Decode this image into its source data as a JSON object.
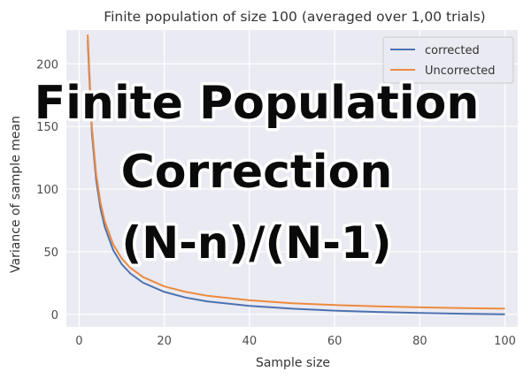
{
  "chart_data": {
    "type": "line",
    "title": "Finite population of size 100 (averaged over 1,00 trials)",
    "xlabel": "Sample size",
    "ylabel": "Variance of sample mean",
    "xlim": [
      -3,
      103
    ],
    "ylim": [
      -10,
      227
    ],
    "x_ticks": [
      0,
      20,
      40,
      60,
      80,
      100
    ],
    "y_ticks": [
      0,
      50,
      100,
      150,
      200
    ],
    "grid": true,
    "legend_position": "top-right",
    "x": [
      2,
      3,
      4,
      5,
      6,
      8,
      10,
      12,
      15,
      20,
      25,
      30,
      40,
      50,
      60,
      70,
      80,
      90,
      100
    ],
    "series": [
      {
        "name": "corrected",
        "color": "#4c72b0",
        "values": [
          218.9,
          144.3,
          107.1,
          84.8,
          69.9,
          51.3,
          40.1,
          32.7,
          25.3,
          17.9,
          13.4,
          10.4,
          6.7,
          4.5,
          3.0,
          1.9,
          1.1,
          0.5,
          0.0
        ]
      },
      {
        "name": "Uncorrected",
        "color": "#ed8a3e",
        "values": [
          223.4,
          148.9,
          111.7,
          89.4,
          74.5,
          55.9,
          44.7,
          37.2,
          29.8,
          22.3,
          17.9,
          14.9,
          11.2,
          8.9,
          7.4,
          6.4,
          5.6,
          5.0,
          4.5
        ]
      }
    ]
  },
  "overlay": {
    "line1": "Finite Population",
    "line2": "Correction",
    "line3": "(N-n)/(N-1)"
  }
}
